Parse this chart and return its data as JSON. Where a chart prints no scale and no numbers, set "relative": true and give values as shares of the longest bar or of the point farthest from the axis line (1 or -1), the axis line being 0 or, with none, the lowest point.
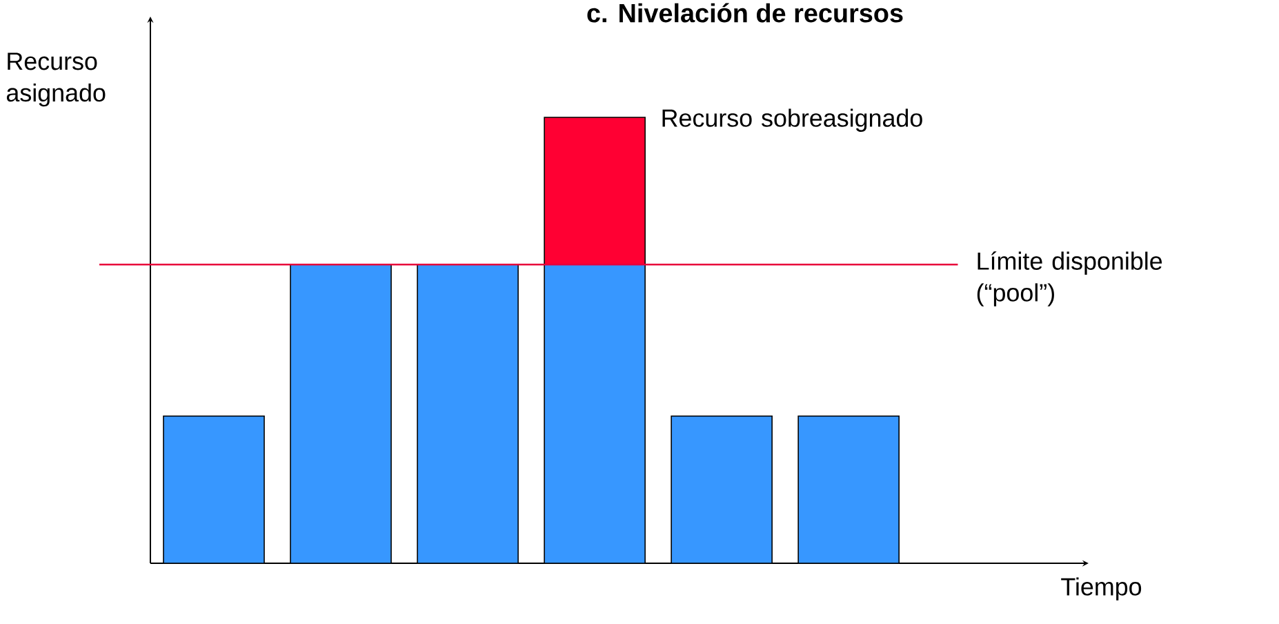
{
  "chart_data": {
    "type": "bar",
    "title": "c. Nivelación de recursos",
    "xlabel": "Tiempo",
    "ylabel": "Recurso asignado",
    "relative": true,
    "stacked": true,
    "categories": [
      null,
      null,
      null,
      null,
      null,
      null
    ],
    "series": [
      {
        "color": "#3797ff",
        "values": [
          0.33,
          0.67,
          0.67,
          0.67,
          0.33,
          0.33
        ]
      },
      {
        "color": "#ff0033",
        "values": [
          null,
          null,
          null,
          0.33,
          null,
          null
        ]
      }
    ],
    "ref_lines": [
      {
        "axis": "y",
        "value": 0.67,
        "label": "Límite disponible (“pool”)",
        "color": "#e8003a"
      }
    ],
    "annotations": [
      "Recurso sobreasignado"
    ]
  }
}
